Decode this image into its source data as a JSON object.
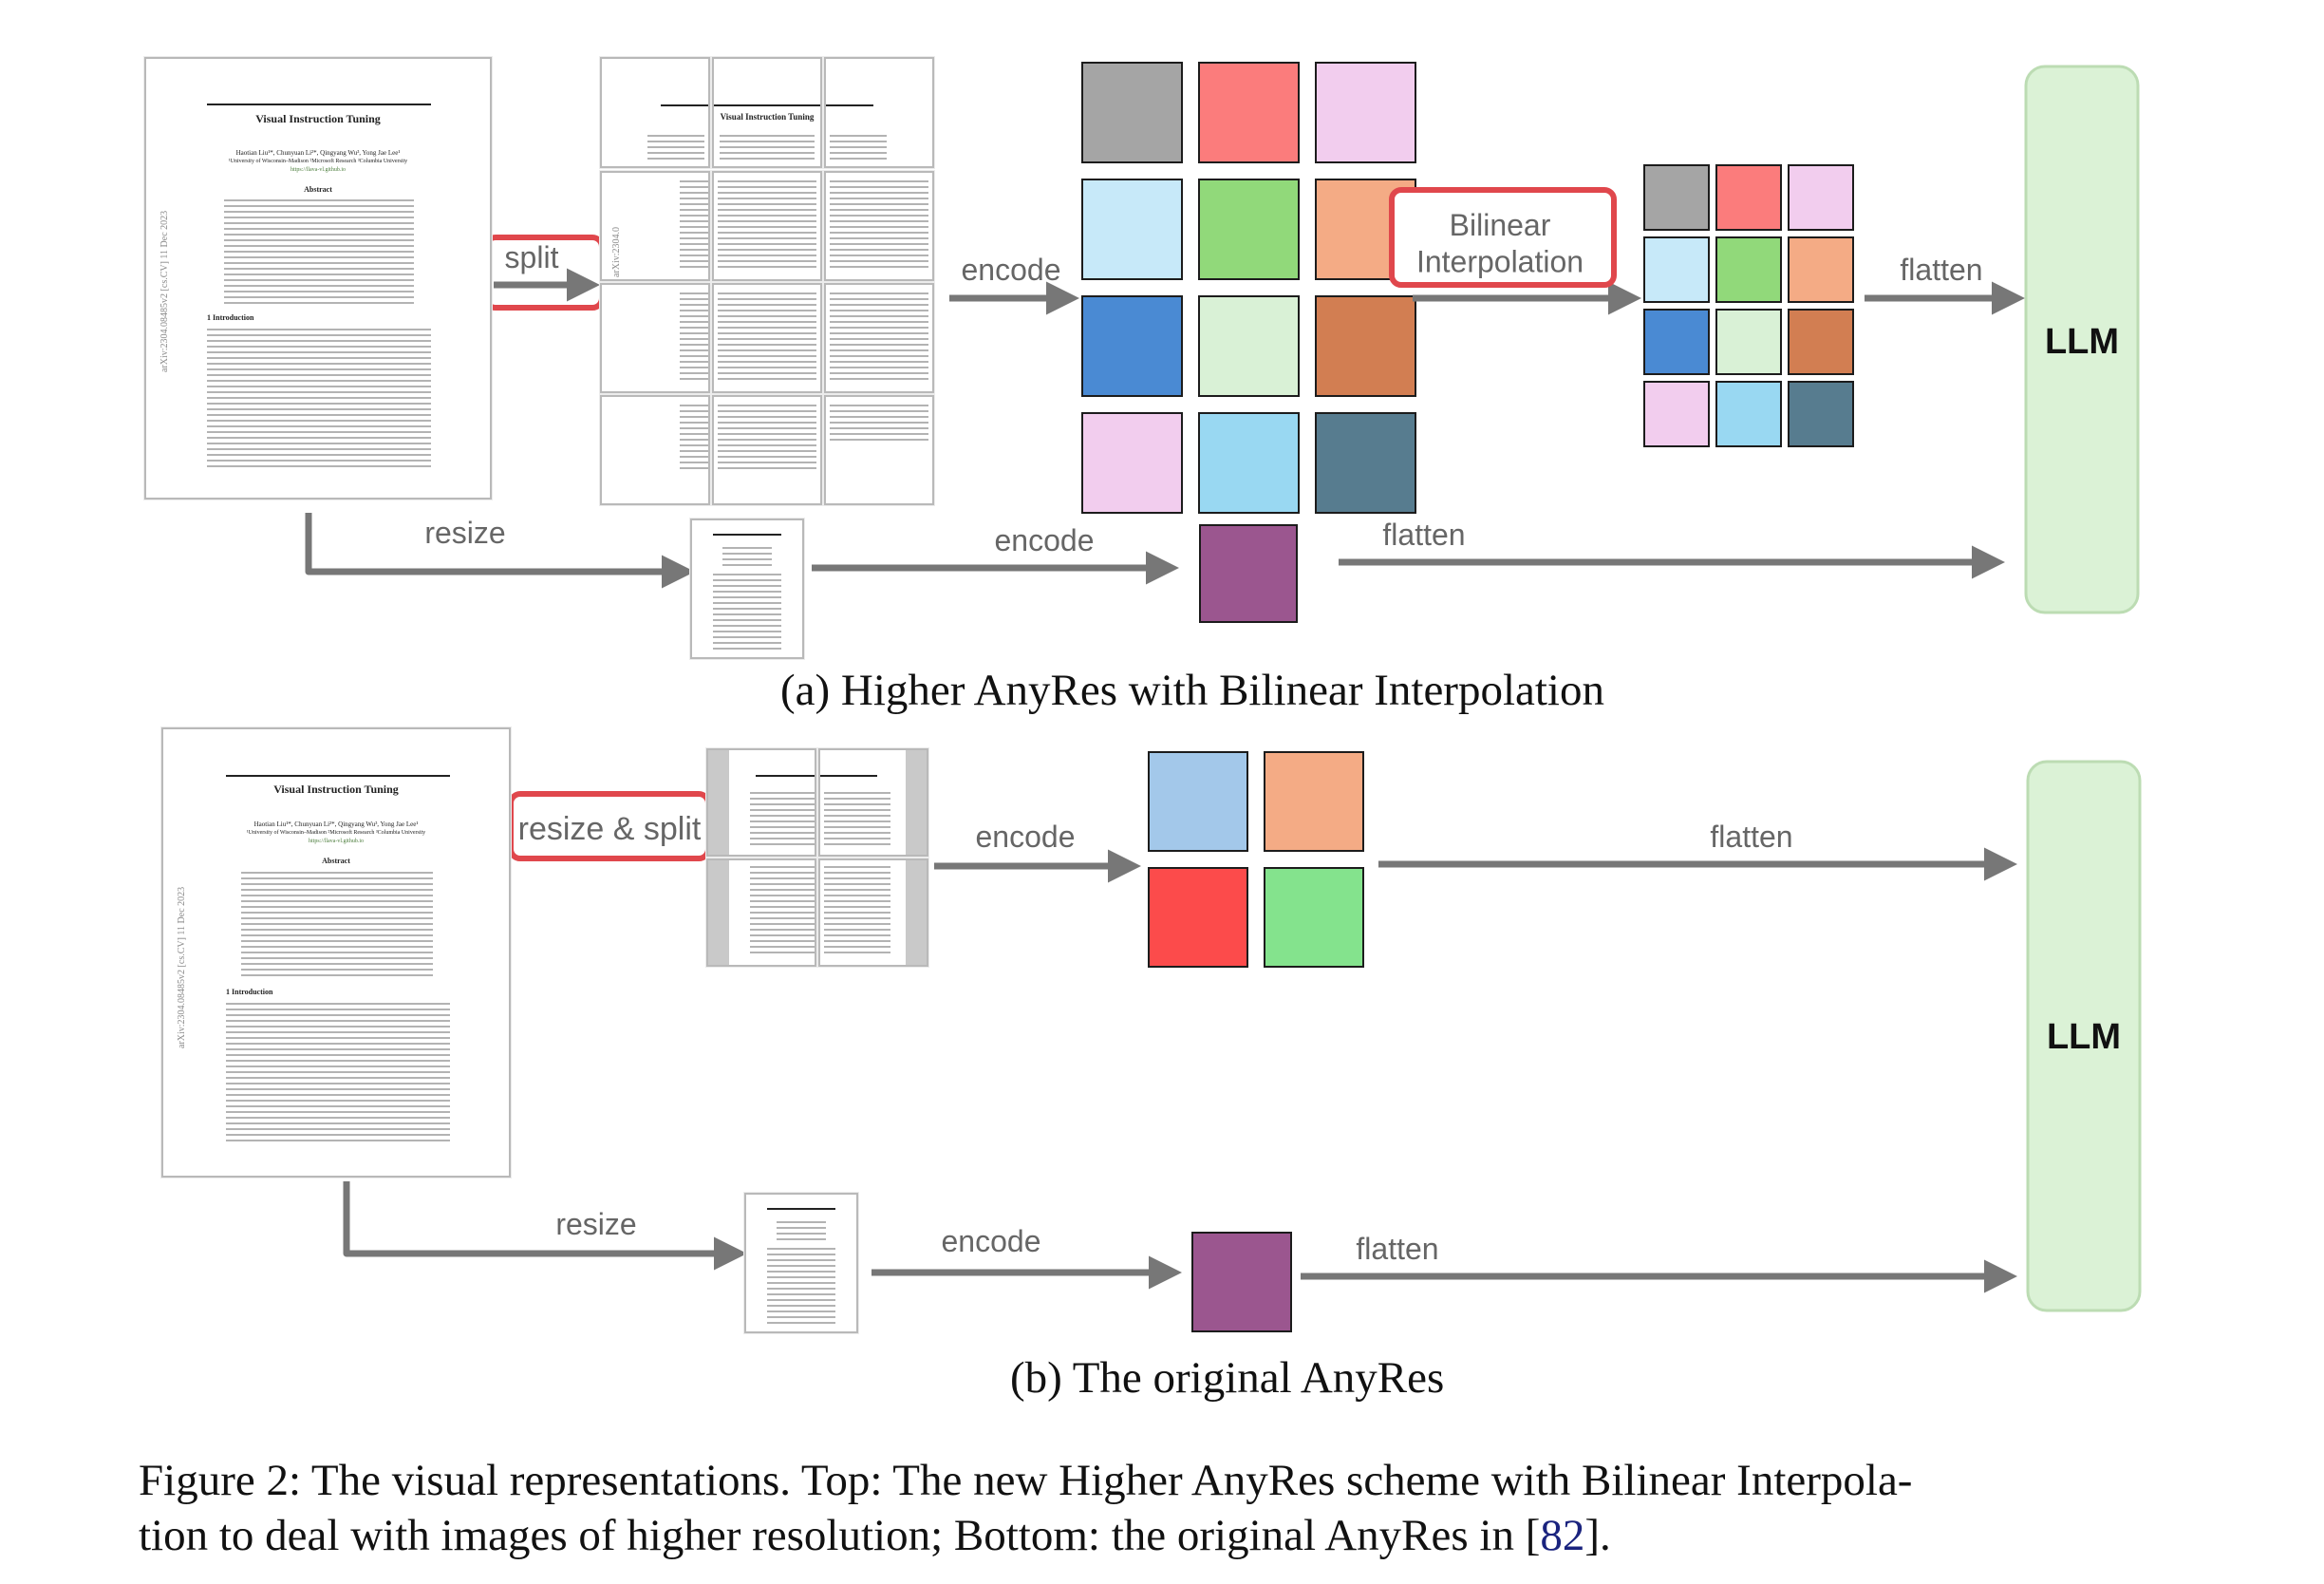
{
  "panel_a": {
    "caption": "(a) Higher AnyRes with Bilinear Interpolation",
    "labels": {
      "split": "split",
      "resize": "resize",
      "encode_top": "encode",
      "encode_bottom": "encode",
      "bilinear": "Bilinear\nInterpolation",
      "flatten_top": "flatten",
      "flatten_bottom": "flatten",
      "llm": "LLM"
    },
    "encoded_grid_colors": [
      [
        "#a5a5a5",
        "#fb7c7c",
        "#f2cdee"
      ],
      [
        "#c7e9f9",
        "#91d97a",
        "#f4ab85"
      ],
      [
        "#4a8ad3",
        "#d9f1d6",
        "#d27e52"
      ],
      [
        "#f2cdee",
        "#99d8f2",
        "#577c8f"
      ]
    ],
    "interpolated_grid_colors": [
      [
        "#a5a5a5",
        "#fb7c7c",
        "#f2cdee"
      ],
      [
        "#c7e9f9",
        "#91d97a",
        "#f4ab85"
      ],
      [
        "#4a8ad3",
        "#d9f1d6",
        "#d27e52"
      ],
      [
        "#f2cdee",
        "#99d8f2",
        "#577c8f"
      ]
    ],
    "global_token_color": "#9b568f"
  },
  "panel_b": {
    "caption": "(b) The original AnyRes",
    "labels": {
      "resize_split": "resize & split",
      "resize": "resize",
      "encode_top": "encode",
      "encode_bottom": "encode",
      "flatten_top": "flatten",
      "flatten_bottom": "flatten",
      "llm": "LLM"
    },
    "encoded_grid_colors": [
      [
        "#a3c8ea",
        "#f4ab85"
      ],
      [
        "#fc4b4b",
        "#84e38d"
      ]
    ],
    "global_token_color": "#9b568f"
  },
  "paper_thumbnail": {
    "title": "Visual Instruction Tuning",
    "authors": "Haotian Liu¹*, Chunyuan Li²*, Qingyang Wu³, Yong Jae Lee¹",
    "affiliations": "¹University of Wisconsin–Madison  ²Microsoft Research  ³Columbia University",
    "url": "https://llava-vl.github.io",
    "abstract_heading": "Abstract",
    "section_heading": "1   Introduction",
    "arxiv_stamp": "arXiv:2304.08485v2  [cs.CV]  11 Dec 2023"
  },
  "figure_caption": {
    "line1": "Figure 2: The visual representations. Top: The new Higher AnyRes scheme with Bilinear Interpola-",
    "line2_before_ref": "tion to deal with images of higher resolution; Bottom: the original AnyRes in [",
    "ref": "82",
    "line2_after_ref": "]."
  },
  "colors": {
    "arrow": "#777777",
    "highlight_box": "#e0474c",
    "llm_fill": "#dbf2d6",
    "llm_stroke": "#bcdcb3",
    "tile_stroke": "#1c1c1c"
  }
}
